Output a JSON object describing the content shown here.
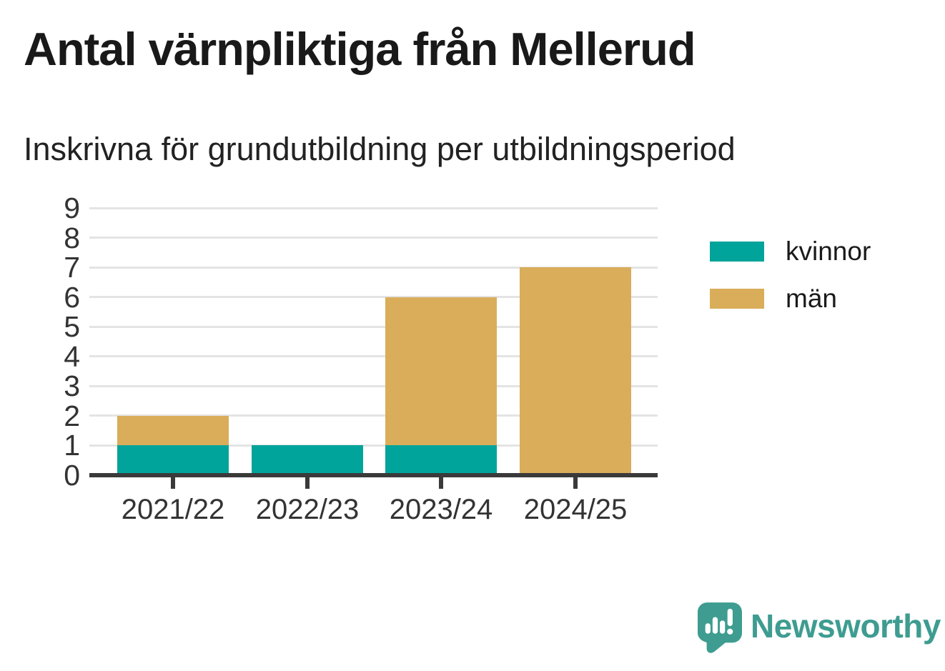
{
  "title": "Antal värnpliktiga från Mellerud",
  "subtitle": "Inskrivna för grundutbildning per utbildningsperiod",
  "chart_data": {
    "type": "bar",
    "stacked": true,
    "title": "Antal värnpliktiga från Mellerud",
    "subtitle": "Inskrivna för grundutbildning per utbildningsperiod",
    "categories": [
      "2021/22",
      "2022/23",
      "2023/24",
      "2024/25"
    ],
    "series": [
      {
        "name": "kvinnor",
        "color": "#00A49B",
        "values": [
          1,
          1,
          1,
          0
        ]
      },
      {
        "name": "män",
        "color": "#D9AD5A",
        "values": [
          1,
          0,
          5,
          7
        ]
      }
    ],
    "totals": [
      2,
      1,
      6,
      7
    ],
    "xlabel": "",
    "ylabel": "",
    "ylim": [
      0,
      9
    ],
    "yticks": [
      0,
      1,
      2,
      3,
      4,
      5,
      6,
      7,
      8,
      9
    ],
    "grid": true,
    "gridline_color": "#e4e4e4",
    "axis_color": "#3a3a3a",
    "tick_label_color": "#333333",
    "legend_position": "right"
  },
  "legend": {
    "items": [
      {
        "label": "kvinnor",
        "color": "#00A49B"
      },
      {
        "label": "män",
        "color": "#D9AD5A"
      }
    ]
  },
  "branding": {
    "logo_text": "Newsworthy",
    "logo_color": "#3E9C90",
    "logo_icon": "newsworthy-speech-bubble-bar-chart-icon"
  }
}
